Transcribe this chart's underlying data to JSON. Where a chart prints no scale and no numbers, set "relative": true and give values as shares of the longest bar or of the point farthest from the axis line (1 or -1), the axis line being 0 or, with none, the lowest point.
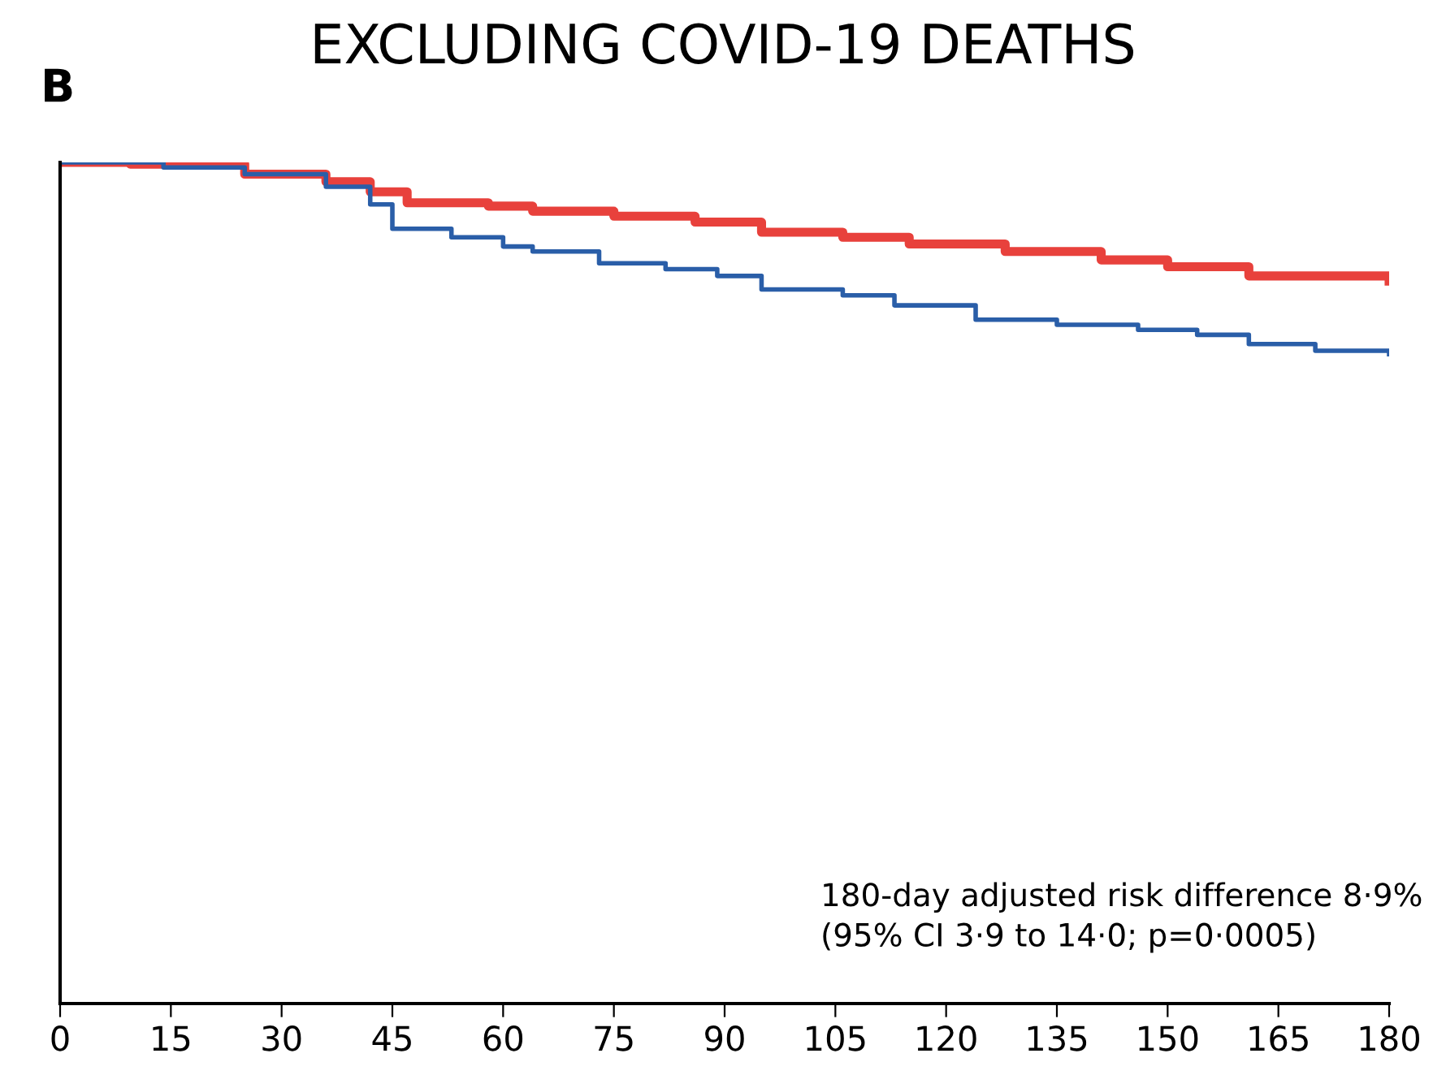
{
  "chart_data": {
    "type": "step",
    "title": "EXCLUDING COVID-19 DEATHS",
    "relative": true,
    "tick_labels": "x",
    "xlim": [
      0,
      180
    ],
    "xticks": [
      0,
      15,
      30,
      45,
      60,
      75,
      90,
      105,
      120,
      135,
      150,
      165,
      180
    ],
    "grid": false,
    "legend": false,
    "annotations": [
      "B",
      "180-day adjusted risk difference 8·9%\n(95% CI 3·9 to 14·0; p=0·0005)"
    ],
    "series": [
      {
        "color": "#e8413c",
        "x": [
          0,
          9.5,
          25,
          36,
          42,
          47,
          58,
          64,
          75,
          86,
          95,
          106,
          115,
          128,
          141,
          150,
          161,
          177,
          180
        ],
        "values": [
          1.0,
          0.998,
          0.986,
          0.977,
          0.965,
          0.952,
          0.948,
          0.942,
          0.936,
          0.929,
          0.917,
          0.911,
          0.903,
          0.894,
          0.884,
          0.876,
          0.865,
          0.865,
          0.859
        ]
      },
      {
        "color": "#2a5ea8",
        "x": [
          0,
          14,
          25,
          36,
          42,
          45,
          53,
          60,
          64,
          73,
          82,
          89,
          95,
          106,
          113,
          124,
          135,
          146,
          154,
          161,
          170,
          180
        ],
        "values": [
          1.0,
          0.994,
          0.986,
          0.971,
          0.95,
          0.921,
          0.911,
          0.9,
          0.894,
          0.88,
          0.873,
          0.865,
          0.849,
          0.842,
          0.83,
          0.813,
          0.807,
          0.801,
          0.795,
          0.784,
          0.776,
          0.772
        ]
      }
    ]
  }
}
